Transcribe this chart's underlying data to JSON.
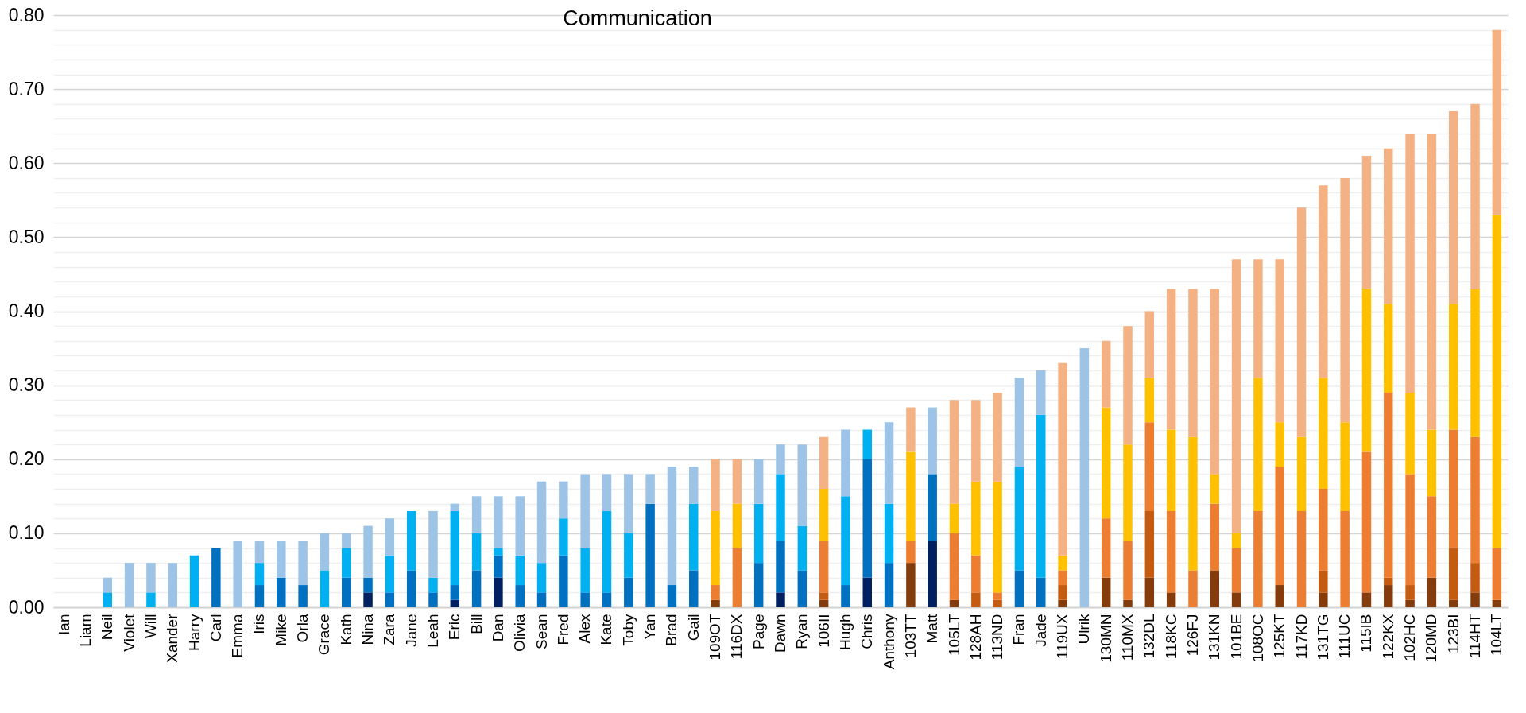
{
  "chart_data": {
    "type": "bar",
    "stacked": true,
    "title": "Communication",
    "grid": "y",
    "categories": [
      "Ian",
      "Liam",
      "Neil",
      "Violet",
      "Will",
      "Xander",
      "Harry",
      "Carl",
      "Emma",
      "Iris",
      "Mike",
      "Orla",
      "Grace",
      "Kath",
      "Nina",
      "Zara",
      "Jane",
      "Leah",
      "Eric",
      "Bill",
      "Dan",
      "Olivia",
      "Sean",
      "Fred",
      "Alex",
      "Kate",
      "Toby",
      "Yan",
      "Brad",
      "Gail",
      "109OT",
      "116DX",
      "Page",
      "Dawn",
      "Ryan",
      "106II",
      "Hugh",
      "Chris",
      "Anthony",
      "103TT",
      "Matt",
      "105LT",
      "128AH",
      "113ND",
      "Fran",
      "Jade",
      "119UX",
      "Ulrik",
      "130MN",
      "110MX",
      "132DL",
      "118KC",
      "126FJ",
      "131KN",
      "101BE",
      "108OC",
      "125KT",
      "117KD",
      "131TG",
      "111UC",
      "115IB",
      "122KX",
      "102HC",
      "120MD",
      "123BI",
      "114HT",
      "104LT"
    ],
    "ylim": [
      0,
      0.8
    ],
    "yticks": [
      {
        "value": 0,
        "label": "0.00"
      },
      {
        "value": 0.02,
        "label": null
      },
      {
        "value": 0.04,
        "label": null
      },
      {
        "value": 0.06,
        "label": null
      },
      {
        "value": 0.08,
        "label": null
      },
      {
        "value": 0.1,
        "label": "0.10"
      },
      {
        "value": 0.12,
        "label": null
      },
      {
        "value": 0.14,
        "label": null
      },
      {
        "value": 0.16,
        "label": null
      },
      {
        "value": 0.18,
        "label": null
      },
      {
        "value": 0.2,
        "label": "0.20"
      },
      {
        "value": 0.22,
        "label": null
      },
      {
        "value": 0.24,
        "label": null
      },
      {
        "value": 0.26,
        "label": null
      },
      {
        "value": 0.28,
        "label": null
      },
      {
        "value": 0.3,
        "label": "0.30"
      },
      {
        "value": 0.32,
        "label": null
      },
      {
        "value": 0.34,
        "label": null
      },
      {
        "value": 0.36,
        "label": null
      },
      {
        "value": 0.38,
        "label": null
      },
      {
        "value": 0.4,
        "label": "0.40"
      },
      {
        "value": 0.42,
        "label": null
      },
      {
        "value": 0.44,
        "label": null
      },
      {
        "value": 0.46,
        "label": null
      },
      {
        "value": 0.48,
        "label": null
      },
      {
        "value": 0.5,
        "label": "0.50"
      },
      {
        "value": 0.52,
        "label": null
      },
      {
        "value": 0.54,
        "label": null
      },
      {
        "value": 0.56,
        "label": null
      },
      {
        "value": 0.58,
        "label": null
      },
      {
        "value": 0.6,
        "label": "0.60"
      },
      {
        "value": 0.62,
        "label": null
      },
      {
        "value": 0.64,
        "label": null
      },
      {
        "value": 0.66,
        "label": null
      },
      {
        "value": 0.68,
        "label": null
      },
      {
        "value": 0.7,
        "label": "0.70"
      },
      {
        "value": 0.72,
        "label": null
      },
      {
        "value": 0.74,
        "label": null
      },
      {
        "value": 0.76,
        "label": null
      },
      {
        "value": 0.78,
        "label": null
      },
      {
        "value": 0.8,
        "label": "0.80"
      }
    ],
    "series": [
      {
        "color": "#002060",
        "values": [
          null,
          null,
          null,
          null,
          null,
          null,
          null,
          null,
          null,
          null,
          null,
          null,
          null,
          null,
          0.02,
          null,
          null,
          null,
          0.01,
          null,
          0.04,
          null,
          null,
          null,
          null,
          null,
          null,
          null,
          null,
          null,
          null,
          null,
          null,
          0.02,
          null,
          null,
          null,
          0.04,
          null,
          null,
          0.09,
          null,
          null,
          null,
          null,
          null,
          null,
          null,
          null,
          null,
          null,
          null,
          null,
          null,
          null,
          null,
          null,
          null,
          null,
          null,
          null,
          null,
          null,
          null,
          null,
          null,
          null
        ]
      },
      {
        "color": "#0070c0",
        "values": [
          null,
          null,
          null,
          null,
          null,
          null,
          null,
          0.08,
          null,
          0.03,
          0.04,
          0.03,
          null,
          0.04,
          0.02,
          0.02,
          0.05,
          0.02,
          0.02,
          0.05,
          0.03,
          0.03,
          0.02,
          0.07,
          0.02,
          0.02,
          0.04,
          0.14,
          0.03,
          0.05,
          null,
          null,
          0.06,
          0.07,
          0.05,
          null,
          0.03,
          0.16,
          0.06,
          null,
          0.09,
          null,
          null,
          null,
          0.05,
          0.04,
          null,
          null,
          null,
          null,
          null,
          null,
          null,
          null,
          null,
          null,
          null,
          null,
          null,
          null,
          null,
          null,
          null,
          null,
          null,
          null,
          null
        ]
      },
      {
        "color": "#00b0f0",
        "values": [
          null,
          null,
          0.02,
          null,
          0.02,
          null,
          0.07,
          null,
          null,
          0.03,
          null,
          null,
          0.05,
          0.04,
          null,
          0.05,
          0.08,
          0.02,
          0.1,
          0.05,
          0.01,
          0.04,
          0.04,
          0.05,
          0.06,
          0.11,
          0.06,
          null,
          null,
          0.09,
          null,
          null,
          0.08,
          0.09,
          0.06,
          null,
          0.12,
          0.04,
          0.08,
          null,
          null,
          null,
          null,
          null,
          0.14,
          0.22,
          null,
          null,
          null,
          null,
          null,
          null,
          null,
          null,
          null,
          null,
          null,
          null,
          null,
          null,
          null,
          null,
          null,
          null,
          null,
          null,
          null
        ]
      },
      {
        "color": "#9dc3e6",
        "values": [
          null,
          null,
          0.02,
          0.06,
          0.04,
          0.06,
          null,
          null,
          0.09,
          0.03,
          0.05,
          0.06,
          0.05,
          0.02,
          0.07,
          0.05,
          null,
          0.09,
          0.01,
          0.05,
          0.07,
          0.08,
          0.11,
          0.05,
          0.1,
          0.05,
          0.08,
          0.04,
          0.16,
          0.05,
          null,
          null,
          0.06,
          0.04,
          0.11,
          null,
          0.09,
          null,
          0.11,
          null,
          0.09,
          null,
          null,
          null,
          0.12,
          0.06,
          null,
          0.35,
          null,
          null,
          null,
          null,
          null,
          null,
          null,
          null,
          null,
          null,
          null,
          null,
          null,
          null,
          null,
          null,
          null,
          null,
          null
        ]
      },
      {
        "color": "#843c0c",
        "values": [
          null,
          null,
          null,
          null,
          null,
          null,
          null,
          null,
          null,
          null,
          null,
          null,
          null,
          null,
          null,
          null,
          null,
          null,
          null,
          null,
          null,
          null,
          null,
          null,
          null,
          null,
          null,
          null,
          null,
          null,
          0.01,
          null,
          null,
          null,
          null,
          0.01,
          null,
          null,
          null,
          0.06,
          null,
          0.01,
          null,
          null,
          null,
          null,
          0.01,
          null,
          0.04,
          0.01,
          0.04,
          0.02,
          null,
          0.05,
          0.02,
          null,
          0.03,
          null,
          0.02,
          null,
          0.02,
          0.03,
          0.01,
          0.04,
          0.01,
          0.02,
          0.01
        ]
      },
      {
        "color": "#c55a11",
        "values": [
          null,
          null,
          null,
          null,
          null,
          null,
          null,
          null,
          null,
          null,
          null,
          null,
          null,
          null,
          null,
          null,
          null,
          null,
          null,
          null,
          null,
          null,
          null,
          null,
          null,
          null,
          null,
          null,
          null,
          null,
          null,
          null,
          null,
          null,
          null,
          0.01,
          null,
          null,
          null,
          null,
          null,
          null,
          0.02,
          0.01,
          null,
          null,
          0.02,
          null,
          null,
          null,
          0.09,
          null,
          null,
          null,
          null,
          null,
          null,
          null,
          0.03,
          null,
          null,
          0.01,
          0.02,
          null,
          0.07,
          0.04,
          null
        ]
      },
      {
        "color": "#ed7d31",
        "values": [
          null,
          null,
          null,
          null,
          null,
          null,
          null,
          null,
          null,
          null,
          null,
          null,
          null,
          null,
          null,
          null,
          null,
          null,
          null,
          null,
          null,
          null,
          null,
          null,
          null,
          null,
          null,
          null,
          null,
          null,
          0.02,
          0.08,
          null,
          null,
          null,
          0.07,
          null,
          null,
          null,
          0.03,
          null,
          0.09,
          0.05,
          0.01,
          null,
          null,
          0.02,
          null,
          0.08,
          0.08,
          0.12,
          0.11,
          0.05,
          0.09,
          0.06,
          0.13,
          0.16,
          0.13,
          0.11,
          0.13,
          0.19,
          0.25,
          0.15,
          0.11,
          0.16,
          0.17,
          0.07
        ]
      },
      {
        "color": "#ffc000",
        "values": [
          null,
          null,
          null,
          null,
          null,
          null,
          null,
          null,
          null,
          null,
          null,
          null,
          null,
          null,
          null,
          null,
          null,
          null,
          null,
          null,
          null,
          null,
          null,
          null,
          null,
          null,
          null,
          null,
          null,
          null,
          0.1,
          0.06,
          null,
          null,
          null,
          0.07,
          null,
          null,
          null,
          0.12,
          null,
          0.04,
          0.1,
          0.15,
          null,
          null,
          0.02,
          null,
          0.15,
          0.13,
          0.06,
          0.11,
          0.18,
          0.04,
          0.02,
          0.18,
          0.06,
          0.1,
          0.15,
          0.12,
          0.22,
          0.12,
          0.11,
          0.09,
          0.17,
          0.2,
          0.45
        ]
      },
      {
        "color": "#f4b183",
        "values": [
          null,
          null,
          null,
          null,
          null,
          null,
          null,
          null,
          null,
          null,
          null,
          null,
          null,
          null,
          null,
          null,
          null,
          null,
          null,
          null,
          null,
          null,
          null,
          null,
          null,
          null,
          null,
          null,
          null,
          null,
          0.07,
          0.06,
          null,
          null,
          null,
          0.07,
          null,
          null,
          null,
          0.06,
          null,
          0.14,
          0.11,
          0.12,
          null,
          null,
          0.26,
          null,
          0.09,
          0.16,
          0.09,
          0.19,
          0.2,
          0.25,
          0.37,
          0.16,
          0.22,
          0.31,
          0.26,
          0.33,
          0.18,
          0.21,
          0.35,
          0.4,
          0.26,
          0.25,
          0.25
        ]
      }
    ]
  }
}
